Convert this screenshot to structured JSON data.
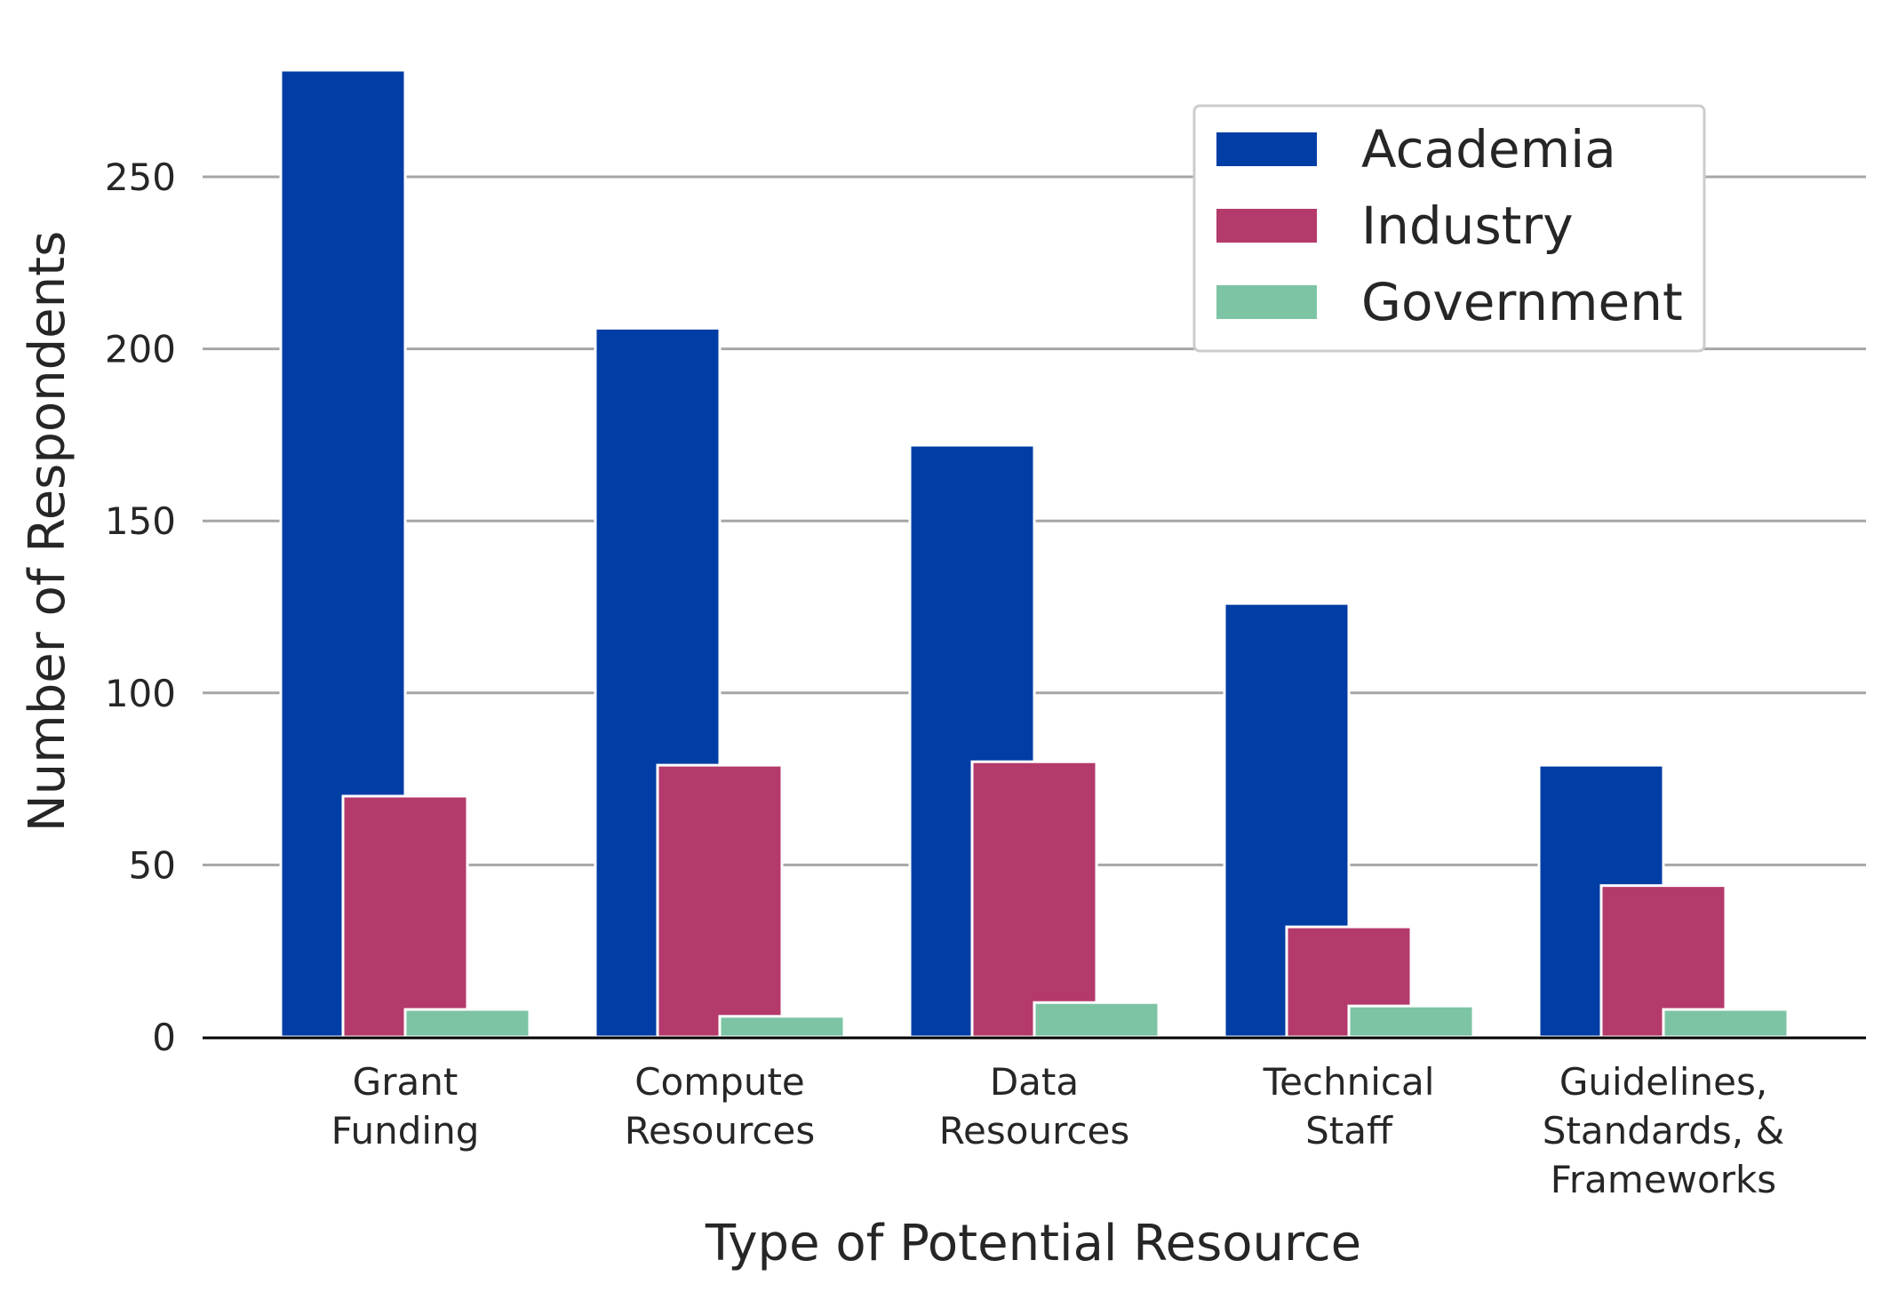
{
  "chart_data": {
    "type": "bar",
    "title": "",
    "xlabel": "Type of Potential Resource",
    "ylabel": "Number of Respondents",
    "categories": [
      [
        "Grant",
        "Funding"
      ],
      [
        "Compute",
        "Resources"
      ],
      [
        "Data",
        "Resources"
      ],
      [
        "Technical",
        "Staff"
      ],
      [
        "Guidelines,",
        "Standards, &",
        "Frameworks"
      ]
    ],
    "series": [
      {
        "name": "Academia",
        "color": "#003da5",
        "values": [
          281,
          206,
          172,
          126,
          79
        ]
      },
      {
        "name": "Industry",
        "color": "#b43a6b",
        "values": [
          70,
          79,
          80,
          32,
          44
        ]
      },
      {
        "name": "Government",
        "color": "#7cc4a4",
        "values": [
          8,
          6,
          10,
          9,
          8
        ]
      }
    ],
    "ylim": [
      0,
      300
    ],
    "yticks": [
      "0",
      "50",
      "100",
      "150",
      "200",
      "250"
    ],
    "grid": "horizontal",
    "legend_position": "top-right"
  }
}
